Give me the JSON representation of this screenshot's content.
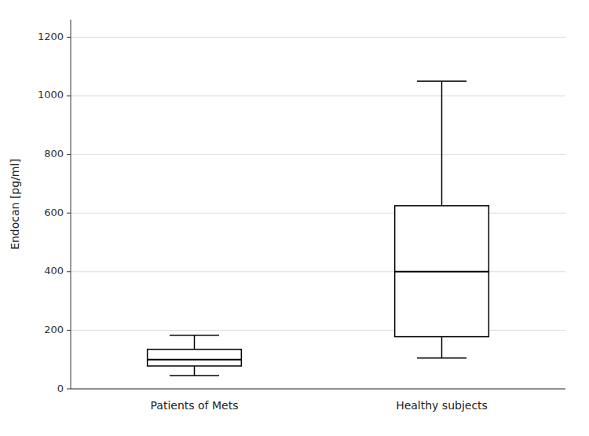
{
  "chart_data": {
    "type": "box",
    "categories": [
      "Patients of Mets",
      "Healthy subjects"
    ],
    "boxes": [
      {
        "whislo": 45,
        "q1": 78,
        "med": 100,
        "q3": 135,
        "whishi": 183
      },
      {
        "whislo": 105,
        "q1": 178,
        "med": 400,
        "q3": 625,
        "whishi": 1050
      }
    ],
    "y_label": "Endocan [pg/ml]",
    "ylim": [
      0,
      1260
    ],
    "yticks": [
      0,
      200,
      400,
      600,
      800,
      1000,
      1200
    ],
    "grid": true,
    "color": "#000000"
  }
}
